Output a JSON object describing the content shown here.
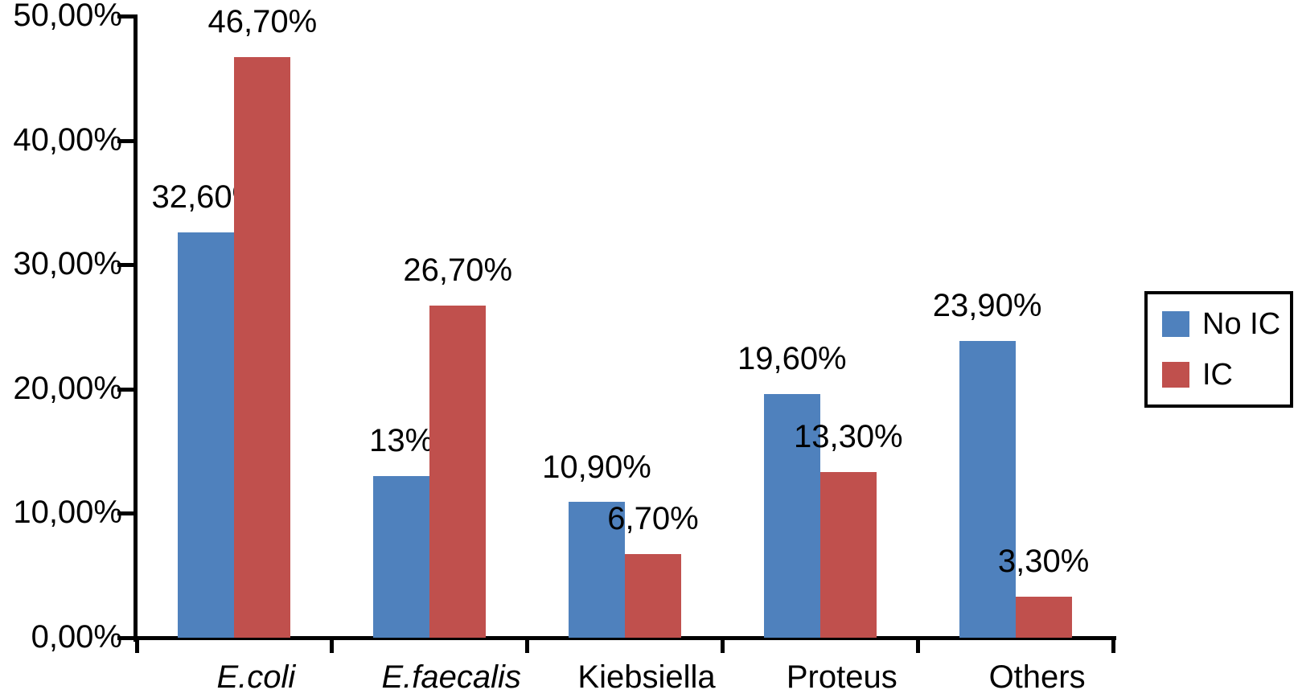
{
  "chart_data": {
    "type": "bar",
    "title": "",
    "xlabel": "",
    "ylabel": "",
    "grid": false,
    "axis_color": "#000000",
    "background_color": "#ffffff",
    "categories": [
      {
        "label": "E.coli",
        "italic": true
      },
      {
        "label": "E.faecalis",
        "italic": true
      },
      {
        "label": "Kiebsiella",
        "italic": false
      },
      {
        "label": "Proteus",
        "italic": false
      },
      {
        "label": "Others",
        "italic": false
      }
    ],
    "series": [
      {
        "name": "No IC",
        "color": "#4f81bd",
        "values": [
          32.6,
          13,
          10.9,
          19.6,
          23.9
        ],
        "labels": [
          "32,60%",
          "13%",
          "10,90%",
          "19,60%",
          "23,90%"
        ]
      },
      {
        "name": "IC",
        "color": "#c0504d",
        "values": [
          46.7,
          26.7,
          6.7,
          13.3,
          3.3
        ],
        "labels": [
          "46,70%",
          "26,70%",
          "6,70%",
          "13,30%",
          "3,30%"
        ]
      }
    ],
    "y_axis": {
      "ylim": [
        0,
        50
      ],
      "ticks": [
        0,
        10,
        20,
        30,
        40,
        50
      ],
      "tick_labels": [
        "0,00%",
        "10,00%",
        "20,00%",
        "30,00%",
        "40,00%",
        "50,00%"
      ]
    },
    "legend": {
      "position": "right",
      "border_color": "#000000",
      "entries": [
        "No IC",
        "IC"
      ]
    }
  }
}
